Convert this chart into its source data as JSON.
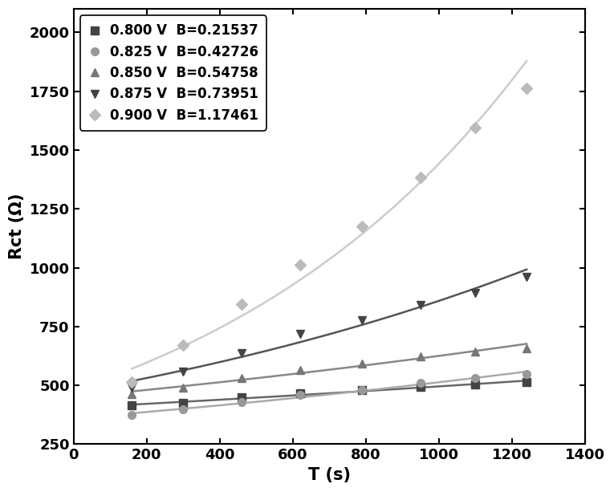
{
  "series": [
    {
      "label": "0.800 V  B=0.21537",
      "B": 0.00021537,
      "line_color": "#666666",
      "marker": "s",
      "marker_color": "#444444",
      "x_data": [
        160,
        300,
        460,
        620,
        790,
        950,
        1100,
        1240
      ],
      "y_data": [
        415,
        425,
        448,
        465,
        480,
        493,
        505,
        513
      ]
    },
    {
      "label": "0.825 V  B=0.42726",
      "B": 0.00042726,
      "line_color": "#aaaaaa",
      "marker": "o",
      "marker_color": "#999999",
      "x_data": [
        160,
        300,
        460,
        620,
        790,
        950,
        1100,
        1240
      ],
      "y_data": [
        375,
        398,
        428,
        458,
        480,
        510,
        530,
        548
      ]
    },
    {
      "label": "0.850 V  B=0.54758",
      "B": 0.00054758,
      "line_color": "#888888",
      "marker": "^",
      "marker_color": "#777777",
      "x_data": [
        160,
        300,
        460,
        620,
        790,
        950,
        1100,
        1240
      ],
      "y_data": [
        462,
        492,
        533,
        565,
        592,
        622,
        645,
        658
      ]
    },
    {
      "label": "0.875 V  B=0.73951",
      "B": 0.00073951,
      "line_color": "#555555",
      "marker": "v",
      "marker_color": "#444444",
      "x_data": [
        160,
        300,
        460,
        620,
        790,
        950,
        1100,
        1240
      ],
      "y_data": [
        492,
        560,
        638,
        718,
        778,
        843,
        892,
        962
      ]
    },
    {
      "label": "0.900 V  B=1.17461",
      "B": 0.00117461,
      "line_color": "#cccccc",
      "marker": "D",
      "marker_color": "#bbbbbb",
      "x_data": [
        160,
        300,
        460,
        620,
        790,
        950,
        1100,
        1240
      ],
      "y_data": [
        515,
        672,
        845,
        1012,
        1175,
        1385,
        1595,
        1762
      ]
    }
  ],
  "xlabel": "T (s)",
  "ylabel": "Rct (Ω)",
  "xlim": [
    0,
    1400
  ],
  "ylim": [
    250,
    2100
  ],
  "xticks": [
    0,
    200,
    400,
    600,
    800,
    1000,
    1200,
    1400
  ],
  "yticks": [
    250,
    500,
    750,
    1000,
    1250,
    1500,
    1750,
    2000
  ],
  "axis_fontsize": 15,
  "tick_fontsize": 13,
  "legend_fontsize": 12
}
